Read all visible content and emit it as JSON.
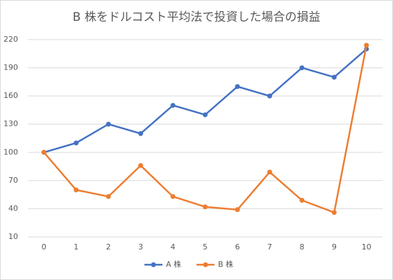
{
  "chart_data": {
    "type": "line",
    "title": "B 株をドルコスト平均法で投資した場合の損益",
    "categories": [
      "0",
      "1",
      "2",
      "3",
      "4",
      "5",
      "6",
      "7",
      "8",
      "9",
      "10"
    ],
    "series": [
      {
        "name": "A 株",
        "color": "#4472c4",
        "values": [
          100,
          110,
          130,
          120,
          150,
          140,
          170,
          160,
          190,
          180,
          210
        ]
      },
      {
        "name": "B 株",
        "color": "#ed7d31",
        "values": [
          100,
          60,
          53,
          86,
          53,
          42,
          39,
          79,
          49,
          36,
          214
        ]
      }
    ],
    "ylim": [
      10,
      220
    ],
    "yticks": [
      10,
      40,
      70,
      100,
      130,
      160,
      190,
      220
    ],
    "grid": true,
    "legend": "bottom"
  }
}
